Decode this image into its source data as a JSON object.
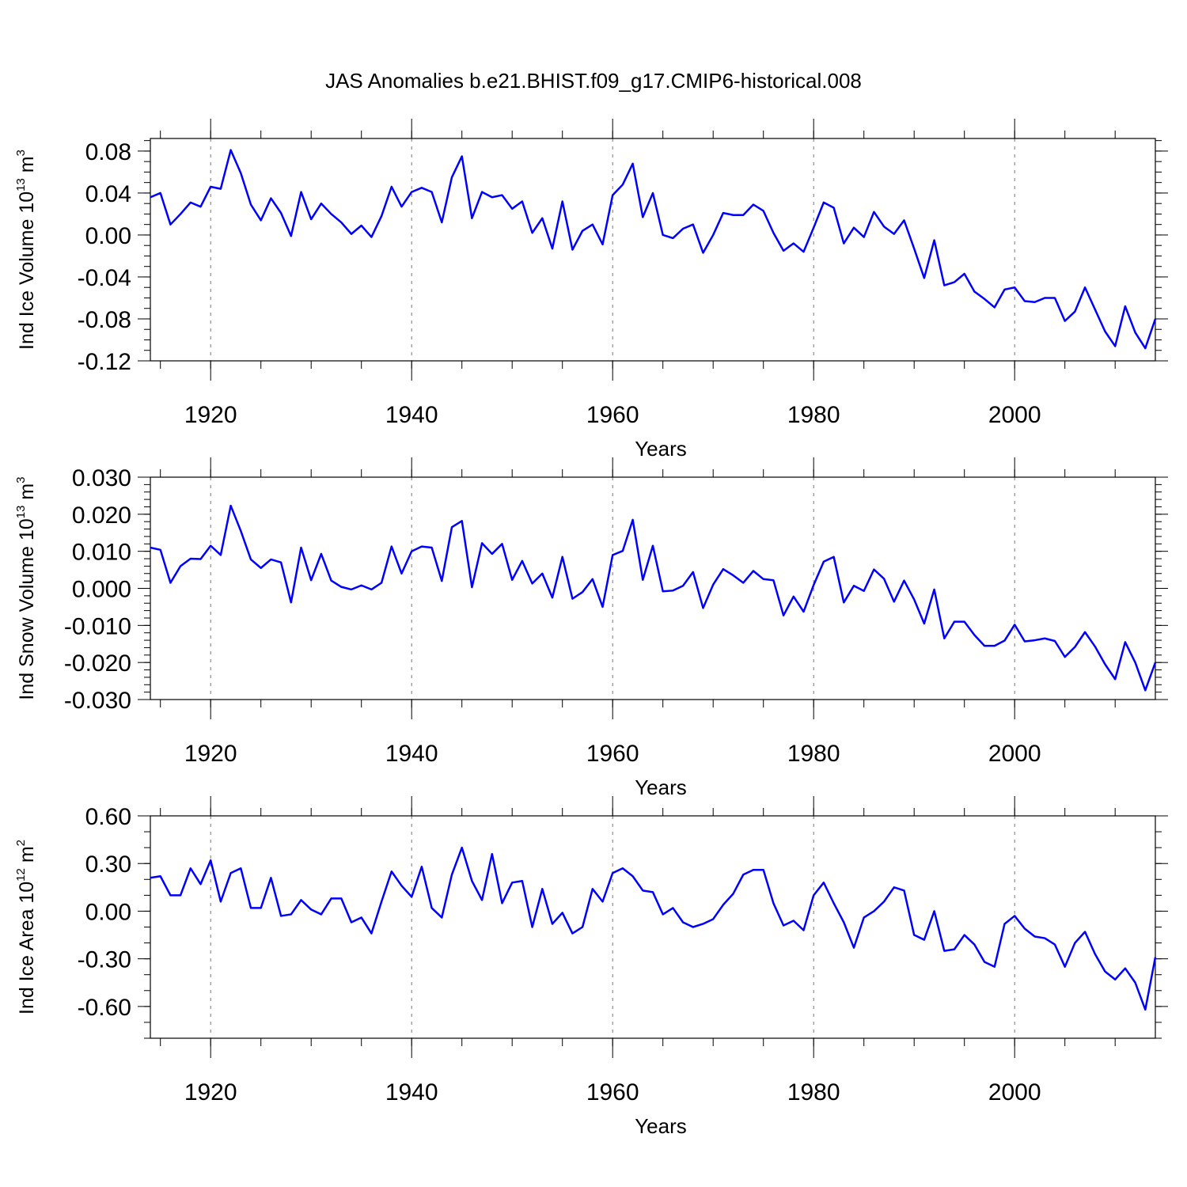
{
  "chart_data": {
    "title": "JAS Anomalies b.e21.BHIST.f09_g17.CMIP6-historical.008",
    "type": "line",
    "color": "#0000ff",
    "x_start": 1914,
    "xlim": [
      1914,
      2014
    ],
    "x_ticks": [
      1920,
      1940,
      1960,
      1980,
      2000
    ],
    "x_tick_labels": [
      "1920",
      "1940",
      "1960",
      "1980",
      "2000"
    ],
    "panels": [
      {
        "name": "ice-volume",
        "ylabel_main": "Ind Ice Volume 10",
        "ylabel_exp": "13",
        "ylabel_unit": " m",
        "ylabel_unit_exp": "3",
        "xlabel": "Years",
        "ylim": [
          -0.12,
          0.092
        ],
        "y_ticks": [
          0.08,
          0.04,
          0.0,
          -0.04,
          -0.08,
          -0.12
        ],
        "y_tick_labels": [
          "0.08",
          "0.04",
          "0.00",
          "-0.04",
          "-0.08",
          "-0.12"
        ],
        "minor_step": 0.01,
        "values": [
          0.036,
          0.04,
          0.01,
          0.02,
          0.031,
          0.027,
          0.046,
          0.044,
          0.081,
          0.059,
          0.029,
          0.014,
          0.035,
          0.021,
          -0.001,
          0.041,
          0.015,
          0.03,
          0.02,
          0.012,
          0.001,
          0.009,
          -0.002,
          0.018,
          0.046,
          0.027,
          0.041,
          0.045,
          0.041,
          0.012,
          0.055,
          0.075,
          0.016,
          0.041,
          0.036,
          0.038,
          0.025,
          0.032,
          0.002,
          0.016,
          -0.013,
          0.032,
          -0.014,
          0.004,
          0.01,
          -0.009,
          0.038,
          0.048,
          0.068,
          0.017,
          0.04,
          0.0,
          -0.003,
          0.006,
          0.01,
          -0.017,
          0.0,
          0.021,
          0.019,
          0.019,
          0.029,
          0.023,
          0.002,
          -0.015,
          -0.008,
          -0.016,
          0.007,
          0.031,
          0.026,
          -0.008,
          0.007,
          -0.002,
          0.022,
          0.008,
          0.001,
          0.014,
          -0.013,
          -0.041,
          -0.005,
          -0.048,
          -0.045,
          -0.037,
          -0.054,
          -0.061,
          -0.069,
          -0.052,
          -0.05,
          -0.063,
          -0.064,
          -0.06,
          -0.06,
          -0.082,
          -0.073,
          -0.05,
          -0.071,
          -0.092,
          -0.106,
          -0.068,
          -0.093,
          -0.108,
          -0.08
        ]
      },
      {
        "name": "snow-volume",
        "ylabel_main": "Ind Snow Volume 10",
        "ylabel_exp": "13",
        "ylabel_unit": " m",
        "ylabel_unit_exp": "3",
        "xlabel": "Years",
        "ylim": [
          -0.03,
          0.03
        ],
        "y_ticks": [
          0.03,
          0.02,
          0.01,
          0.0,
          -0.01,
          -0.02,
          -0.03
        ],
        "y_tick_labels": [
          "0.030",
          "0.020",
          "0.010",
          "0.000",
          "-0.010",
          "-0.020",
          "-0.030"
        ],
        "minor_step": 0.002,
        "values": [
          0.011,
          0.0104,
          0.0015,
          0.006,
          0.008,
          0.0079,
          0.0115,
          0.009,
          0.0223,
          0.0155,
          0.0078,
          0.0055,
          0.0078,
          0.007,
          -0.0038,
          0.011,
          0.0022,
          0.0093,
          0.0021,
          0.0004,
          -0.0003,
          0.0008,
          -0.0003,
          0.0015,
          0.0113,
          0.004,
          0.01,
          0.0113,
          0.011,
          0.002,
          0.0165,
          0.0182,
          0.0003,
          0.0122,
          0.0093,
          0.012,
          0.0023,
          0.0074,
          0.0013,
          0.004,
          -0.0025,
          0.0085,
          -0.0028,
          -0.001,
          0.0025,
          -0.005,
          0.009,
          0.0101,
          0.0185,
          0.0023,
          0.0115,
          -0.0008,
          -0.0006,
          0.0007,
          0.0044,
          -0.0053,
          0.001,
          0.0052,
          0.0035,
          0.0015,
          0.0047,
          0.0025,
          0.0022,
          -0.0073,
          -0.0022,
          -0.0063,
          0.0009,
          0.0072,
          0.0085,
          -0.0038,
          0.0007,
          -0.0007,
          0.0051,
          0.0026,
          -0.0036,
          0.0021,
          -0.003,
          -0.0095,
          -0.0003,
          -0.0135,
          -0.009,
          -0.009,
          -0.0126,
          -0.0155,
          -0.0155,
          -0.0141,
          -0.0098,
          -0.0143,
          -0.014,
          -0.0135,
          -0.0142,
          -0.0185,
          -0.0158,
          -0.0118,
          -0.0157,
          -0.0205,
          -0.0245,
          -0.0145,
          -0.02,
          -0.0275,
          -0.02
        ]
      },
      {
        "name": "ice-area",
        "ylabel_main": "Ind Ice Area 10",
        "ylabel_exp": "12",
        "ylabel_unit": " m",
        "ylabel_unit_exp": "2",
        "xlabel": "Years",
        "ylim": [
          -0.8,
          0.6
        ],
        "y_ticks": [
          0.6,
          0.3,
          0.0,
          -0.3,
          -0.6
        ],
        "y_tick_labels": [
          "0.60",
          "0.30",
          "0.00",
          "-0.30",
          "-0.60"
        ],
        "minor_step": 0.1,
        "values": [
          0.21,
          0.22,
          0.1,
          0.1,
          0.27,
          0.17,
          0.32,
          0.06,
          0.24,
          0.27,
          0.02,
          0.02,
          0.21,
          -0.03,
          -0.02,
          0.07,
          0.01,
          -0.02,
          0.08,
          0.08,
          -0.07,
          -0.04,
          -0.14,
          0.06,
          0.25,
          0.16,
          0.09,
          0.28,
          0.02,
          -0.04,
          0.23,
          0.4,
          0.19,
          0.07,
          0.36,
          0.05,
          0.18,
          0.19,
          -0.1,
          0.14,
          -0.08,
          -0.01,
          -0.14,
          -0.1,
          0.14,
          0.06,
          0.24,
          0.27,
          0.22,
          0.13,
          0.12,
          -0.02,
          0.02,
          -0.07,
          -0.1,
          -0.08,
          -0.05,
          0.04,
          0.11,
          0.23,
          0.26,
          0.26,
          0.05,
          -0.09,
          -0.06,
          -0.12,
          0.1,
          0.18,
          0.05,
          -0.07,
          -0.23,
          -0.04,
          0.0,
          0.06,
          0.15,
          0.13,
          -0.15,
          -0.18,
          0.0,
          -0.25,
          -0.24,
          -0.15,
          -0.21,
          -0.32,
          -0.35,
          -0.08,
          -0.03,
          -0.11,
          -0.16,
          -0.17,
          -0.21,
          -0.35,
          -0.2,
          -0.13,
          -0.27,
          -0.38,
          -0.43,
          -0.36,
          -0.45,
          -0.62,
          -0.29
        ]
      }
    ]
  }
}
